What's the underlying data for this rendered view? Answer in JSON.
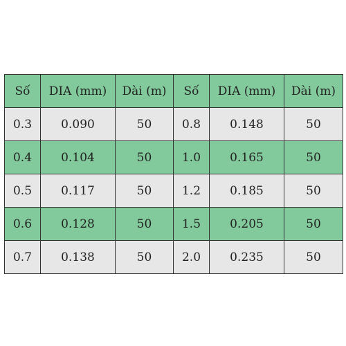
{
  "colors": {
    "header_bg": "#82c99b",
    "row_green": "#82c99b",
    "row_grey": "#e7e7e7",
    "border": "#333333"
  },
  "table": {
    "headers": [
      "Số",
      "DIA (mm)",
      "Dài (m)",
      "Số",
      "DIA (mm)",
      "Dài (m)"
    ],
    "rows": [
      [
        "0.3",
        "0.090",
        "50",
        "0.8",
        "0.148",
        "50"
      ],
      [
        "0.4",
        "0.104",
        "50",
        "1.0",
        "0.165",
        "50"
      ],
      [
        "0.5",
        "0.117",
        "50",
        "1.2",
        "0.185",
        "50"
      ],
      [
        "0.6",
        "0.128",
        "50",
        "1.5",
        "0.205",
        "50"
      ],
      [
        "0.7",
        "0.138",
        "50",
        "2.0",
        "0.235",
        "50"
      ]
    ]
  }
}
